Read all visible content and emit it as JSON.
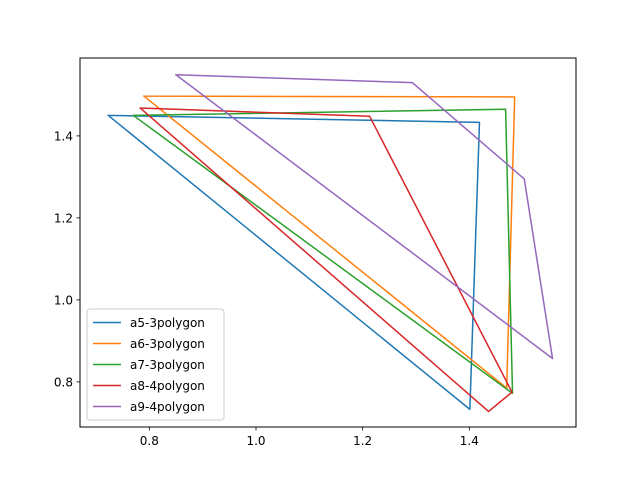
{
  "chart_data": {
    "type": "line",
    "title": "",
    "xlabel": "",
    "ylabel": "",
    "xlim": [
      0.67,
      1.6
    ],
    "ylim": [
      0.69,
      1.59
    ],
    "grid": false,
    "legend_position": "lower-left",
    "x_ticks": [
      {
        "value": 0.8,
        "label": "0.8"
      },
      {
        "value": 1.0,
        "label": "1.0"
      },
      {
        "value": 1.2,
        "label": "1.2"
      },
      {
        "value": 1.4,
        "label": "1.4"
      }
    ],
    "y_ticks": [
      {
        "value": 0.8,
        "label": "0.8"
      },
      {
        "value": 1.0,
        "label": "1.0"
      },
      {
        "value": 1.2,
        "label": "1.2"
      },
      {
        "value": 1.4,
        "label": "1.4"
      }
    ],
    "series": [
      {
        "name": "a5-3polygon",
        "color": "#1f77b4",
        "x": [
          0.723,
          1.419,
          1.401,
          0.723
        ],
        "y": [
          1.45,
          1.433,
          0.733,
          1.45
        ]
      },
      {
        "name": "a6-3polygon",
        "color": "#ff7f0e",
        "x": [
          0.79,
          1.485,
          1.47,
          0.79
        ],
        "y": [
          1.497,
          1.495,
          0.785,
          1.497
        ]
      },
      {
        "name": "a7-3polygon",
        "color": "#2ca02c",
        "x": [
          0.77,
          1.468,
          1.481,
          0.77
        ],
        "y": [
          1.45,
          1.465,
          0.772,
          1.45
        ]
      },
      {
        "name": "a8-4polygon",
        "color": "#d62728",
        "x": [
          0.783,
          1.213,
          1.48,
          1.436,
          0.783
        ],
        "y": [
          1.468,
          1.448,
          0.775,
          0.728,
          1.468
        ]
      },
      {
        "name": "a9-4polygon",
        "color": "#9467bd",
        "x": [
          0.85,
          1.293,
          1.503,
          1.556,
          0.85
        ],
        "y": [
          1.549,
          1.53,
          1.295,
          0.857,
          1.549
        ]
      }
    ]
  }
}
